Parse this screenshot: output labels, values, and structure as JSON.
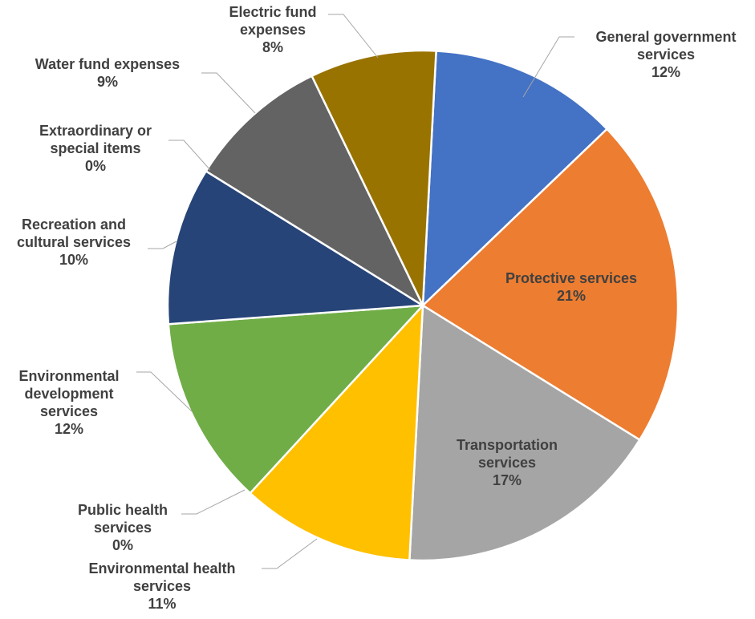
{
  "chart_data": {
    "type": "pie",
    "title": "",
    "start_angle_deg": 3,
    "direction": "clockwise",
    "slices": [
      {
        "label": "General government services",
        "lines": [
          "General government",
          "services"
        ],
        "value": 12,
        "pct_label": "12%",
        "color": "#4472c4"
      },
      {
        "label": "Protective services",
        "lines": [
          "Protective services"
        ],
        "value": 21,
        "pct_label": "21%",
        "color": "#ed7d31"
      },
      {
        "label": "Transportation services",
        "lines": [
          "Transportation",
          "services"
        ],
        "value": 17,
        "pct_label": "17%",
        "color": "#a5a5a5"
      },
      {
        "label": "Environmental health services",
        "lines": [
          "Environmental health",
          "services"
        ],
        "value": 11,
        "pct_label": "11%",
        "color": "#ffc000"
      },
      {
        "label": "Public health services",
        "lines": [
          "Public health",
          "services"
        ],
        "value": 0,
        "pct_label": "0%",
        "color": "#5b9bd5"
      },
      {
        "label": "Environmental development services",
        "lines": [
          "Environmental",
          "development",
          "services"
        ],
        "value": 12,
        "pct_label": "12%",
        "color": "#70ad47"
      },
      {
        "label": "Recreation and cultural services",
        "lines": [
          "Recreation and",
          "cultural services"
        ],
        "value": 10,
        "pct_label": "10%",
        "color": "#264478"
      },
      {
        "label": "Extraordinary or special items",
        "lines": [
          "Extraordinary or",
          "special items"
        ],
        "value": 0,
        "pct_label": "0%",
        "color": "#9e480e"
      },
      {
        "label": "Water fund expenses",
        "lines": [
          "Water fund expenses"
        ],
        "value": 9,
        "pct_label": "9%",
        "color": "#636363"
      },
      {
        "label": "Electric fund expenses",
        "lines": [
          "Electric fund",
          "expenses"
        ],
        "value": 8,
        "pct_label": "8%",
        "color": "#997300"
      }
    ]
  }
}
